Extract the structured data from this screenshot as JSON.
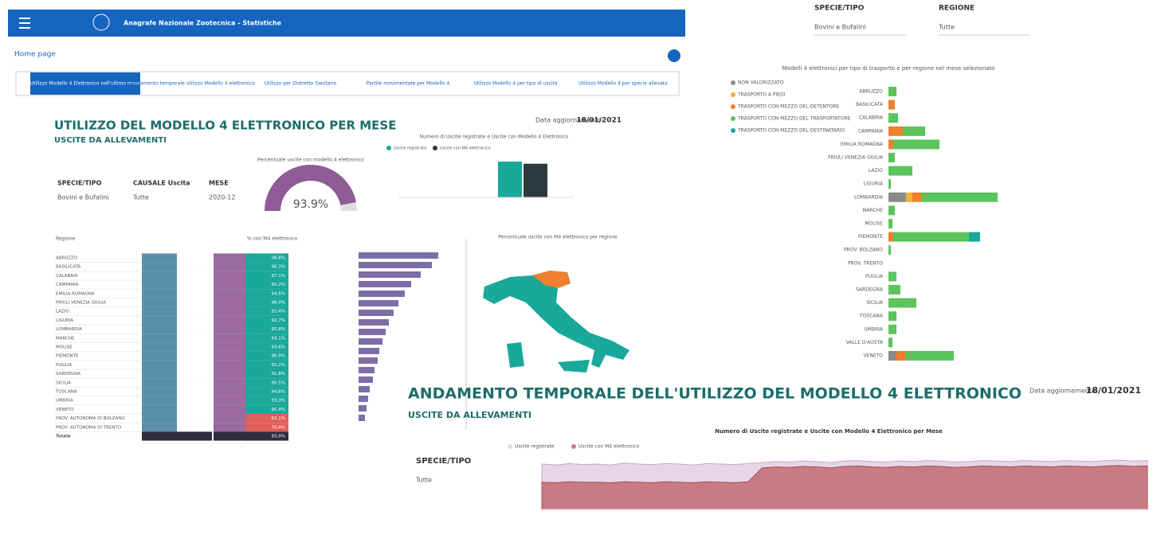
{
  "header": {
    "title": "Anagrafe Nazionale Zootecnica - Statistiche"
  },
  "help": "Home page",
  "tabs": [
    "Utilizzo Modello 4 Elettronico nell'ultimo mese",
    "Andamento temporale utilizzo Modello 4 elettronico",
    "Utilizzo per Distretto Sanitario",
    "Partite movimentate per Modello 4",
    "Utilizzo Modello 4 per tipo di uscita",
    "Utilizzo Modello 4 per specie allevata"
  ],
  "monthly": {
    "title": "UTILIZZO DEL MODELLO 4 ELETTRONICO PER MESE",
    "subtitle": "USCITE DA ALLEVAMENTI",
    "updated_label": "Data aggiornamento:",
    "updated": "18/01/2021",
    "filters": [
      {
        "label": "SPECIE/TIPO",
        "value": "Bovini e Bufalini"
      },
      {
        "label": "CAUSALE Uscita",
        "value": "Tutte"
      },
      {
        "label": "MESE",
        "value": "2020-12"
      }
    ],
    "gauge": {
      "title": "Percentuale uscite con modello 4 elettronico",
      "value": 93.9,
      "value_label": "93.9%"
    },
    "bars": {
      "title": "Numero di Uscite registrate e Uscite con Modello 4 Elettronico",
      "series": [
        {
          "name": "Uscite registrate",
          "color": "#1aa89a",
          "value": 100
        },
        {
          "name": "Uscite con M4 elettronico",
          "color": "#2d3b3f",
          "value": 94
        }
      ]
    },
    "table": {
      "headers": [
        "Regione",
        "% con M4 elettronico"
      ],
      "rows": [
        [
          "ABRUZZO",
          "98,8%"
        ],
        [
          "BASILICATA",
          "96,3%"
        ],
        [
          "CALABRIA",
          "97,1%"
        ],
        [
          "CAMPANIA",
          "95,2%"
        ],
        [
          "EMILIA ROMAGNA",
          "94,5%"
        ],
        [
          "FRIULI VENEZIA GIULIA",
          "96,0%"
        ],
        [
          "LAZIO",
          "93,4%"
        ],
        [
          "LIGURIA",
          "92,7%"
        ],
        [
          "LOMBARDIA",
          "95,8%"
        ],
        [
          "MARCHE",
          "94,1%"
        ],
        [
          "MOLISE",
          "93,6%"
        ],
        [
          "PIEMONTE",
          "96,9%"
        ],
        [
          "PUGLIA",
          "92,2%"
        ],
        [
          "SARDEGNA",
          "91,8%"
        ],
        [
          "SICILIA",
          "90,5%"
        ],
        [
          "TOSCANA",
          "94,8%"
        ],
        [
          "UMBRIA",
          "93,3%"
        ],
        [
          "VENETO",
          "95,4%"
        ],
        [
          "PROV. AUTONOMA DI BOLZANO",
          "62,1%"
        ],
        [
          "PROV. AUTONOMA DI TRENTO",
          "70,4%"
        ],
        [
          "Totale",
          "93,9%"
        ]
      ]
    },
    "ranking": {
      "values": [
        100,
        92,
        78,
        66,
        58,
        50,
        44,
        38,
        34,
        30,
        26,
        24,
        20,
        18,
        14,
        12,
        10,
        8
      ],
      "color": "#7c6ea6"
    },
    "map": {
      "title": "Percentuale uscite con M4 elettronico per regione"
    }
  },
  "right": {
    "filters": [
      {
        "label": "SPECIE/TIPO",
        "value": "Bovini e Bufalini"
      },
      {
        "label": "REGIONE",
        "value": "Tutte"
      }
    ],
    "title": "Modelli 4 elettronici per tipo di trasporto e per regione nel mese selezionato",
    "chart_data": {
      "type": "bar",
      "orientation": "horizontal",
      "categories": [
        "ABRUZZO",
        "BASILICATA",
        "CALABRIA",
        "CAMPANIA",
        "EMILIA ROMAGNA",
        "FRIULI VENEZIA GIULIA",
        "LAZIO",
        "LIGURIA",
        "LOMBARDIA",
        "MARCHE",
        "MOLISE",
        "PIEMONTE",
        "PROV. BOLZANO",
        "PROV. TRENTO",
        "PUGLIA",
        "SARDEGNA",
        "SICILIA",
        "TOSCANA",
        "UMBRIA",
        "VALLE D'AOSTA",
        "VENETO"
      ],
      "series": [
        {
          "name": "NON VALORIZZATO",
          "color": "#8a8a8a",
          "values": [
            0,
            0,
            0,
            0,
            0,
            0,
            0,
            0,
            22,
            0,
            0,
            0,
            0,
            0,
            0,
            0,
            0,
            0,
            0,
            0,
            10
          ]
        },
        {
          "name": "TRASPORTO A PIEDI",
          "color": "#f2b233",
          "values": [
            0,
            0,
            0,
            0,
            0,
            0,
            0,
            0,
            8,
            0,
            0,
            0,
            0,
            0,
            0,
            0,
            0,
            0,
            0,
            0,
            0
          ]
        },
        {
          "name": "TRASPORTO CON MEZZO DEL DETENTORE",
          "color": "#f07f2f",
          "values": [
            0,
            8,
            0,
            18,
            6,
            0,
            0,
            0,
            12,
            0,
            0,
            6,
            0,
            0,
            0,
            0,
            0,
            0,
            0,
            0,
            12
          ]
        },
        {
          "name": "TRASPORTO CON MEZZO DEL TRASPORTATORE",
          "color": "#5cc45c",
          "values": [
            10,
            0,
            12,
            28,
            58,
            8,
            30,
            3,
            95,
            8,
            5,
            95,
            3,
            0,
            10,
            15,
            35,
            10,
            10,
            5,
            60
          ]
        },
        {
          "name": "TRASPORTO CON MEZZO DEL DESTINATARIO",
          "color": "#1aa89a",
          "values": [
            0,
            0,
            0,
            0,
            0,
            0,
            0,
            0,
            0,
            0,
            0,
            14,
            0,
            0,
            0,
            0,
            0,
            0,
            0,
            0,
            0
          ]
        }
      ]
    }
  },
  "trend": {
    "title": "ANDAMENTO TEMPORALE DELL'UTILIZZO DEL MODELLO 4 ELETTRONICO",
    "subtitle": "USCITE DA ALLEVAMENTI",
    "updated_label": "Data aggiornamento:",
    "updated": "18/01/2021",
    "filter": {
      "label": "SPECIE/TIPO",
      "value": "Tutte"
    },
    "chart_data": {
      "type": "area",
      "title": "Numero di Uscite registrate e Uscite con Modello 4 Elettronico per Mese",
      "ylim": [
        0,
        100
      ],
      "series": [
        {
          "name": "Uscite registrate",
          "color": "#e7d6e6",
          "values": [
            92,
            90,
            93,
            91,
            92,
            90,
            94,
            92,
            91,
            93,
            92,
            90,
            93,
            92,
            91,
            93,
            95,
            97,
            96,
            98,
            97,
            95,
            98,
            99,
            97,
            96,
            98,
            97,
            99,
            98,
            96,
            97,
            99,
            98,
            97,
            99,
            98,
            97,
            99,
            98,
            97,
            99,
            100,
            98,
            99
          ]
        },
        {
          "name": "Uscite con M4 elettronico",
          "color": "#c97b83",
          "values": [
            55,
            54,
            56,
            55,
            55,
            54,
            56,
            55,
            54,
            56,
            55,
            54,
            56,
            55,
            54,
            56,
            84,
            86,
            85,
            87,
            86,
            84,
            87,
            88,
            86,
            85,
            87,
            86,
            88,
            87,
            85,
            86,
            88,
            87,
            86,
            88,
            87,
            86,
            88,
            87,
            86,
            88,
            89,
            87,
            88
          ]
        }
      ]
    }
  }
}
